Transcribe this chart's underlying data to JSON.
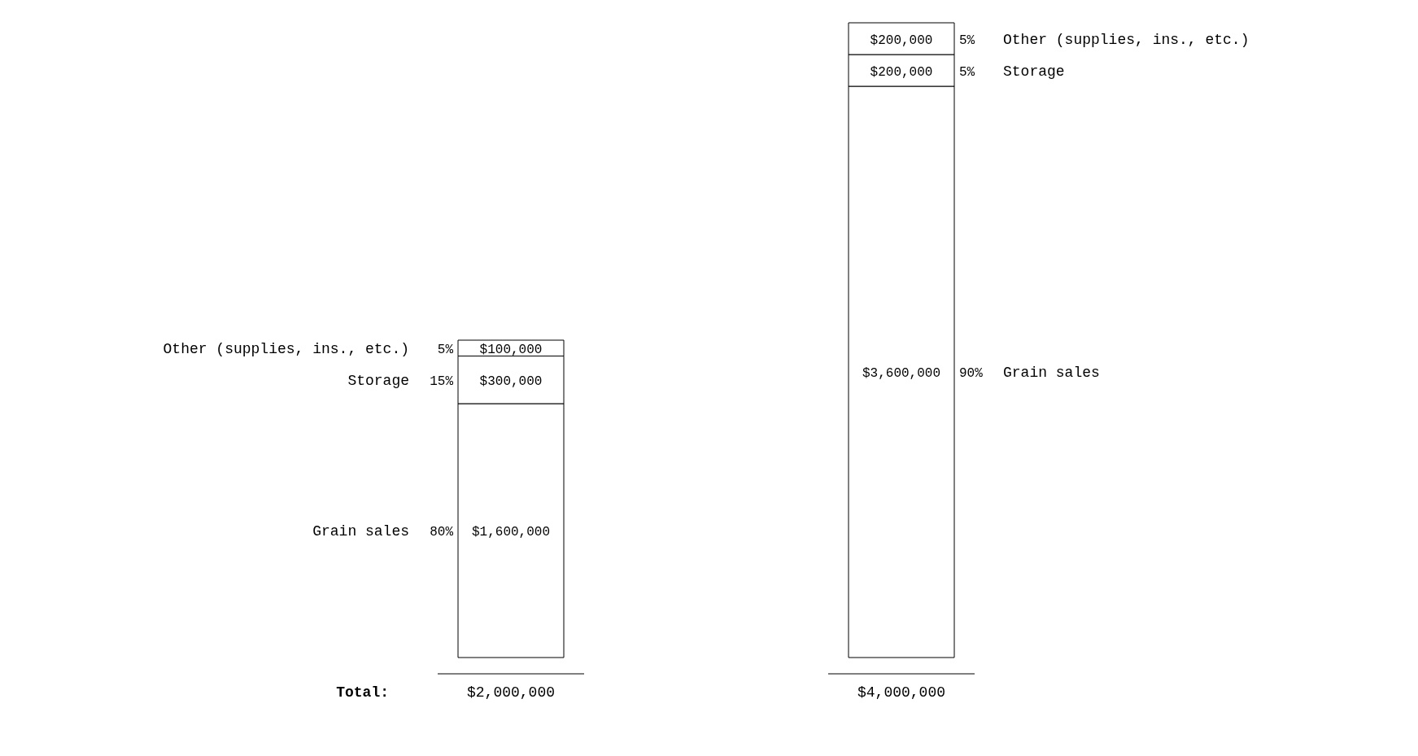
{
  "chart_data": {
    "type": "bar",
    "stacked": true,
    "categories": [
      null,
      null
    ],
    "series": [
      {
        "name": "Grain sales",
        "color": "#ffffff",
        "values": [
          1600000,
          3600000
        ],
        "value_labels": [
          "$1,600,000",
          "$3,600,000"
        ]
      },
      {
        "name": "Storage",
        "color": "#ffffff",
        "values": [
          300000,
          200000
        ],
        "value_labels": [
          "$300,000",
          "$200,000"
        ]
      },
      {
        "name": "Other (supplies, ins., etc.)",
        "color": "#ffffff",
        "values": [
          100000,
          200000
        ],
        "value_labels": [
          "$100,000",
          "$200,000"
        ]
      }
    ],
    "totals": [
      "$2,000,000",
      "$4,000,000"
    ],
    "annotations": [
      "80%",
      "15%",
      "5%",
      "90%",
      "5%",
      "5%",
      "Total:"
    ],
    "grid": false,
    "legend": false
  }
}
